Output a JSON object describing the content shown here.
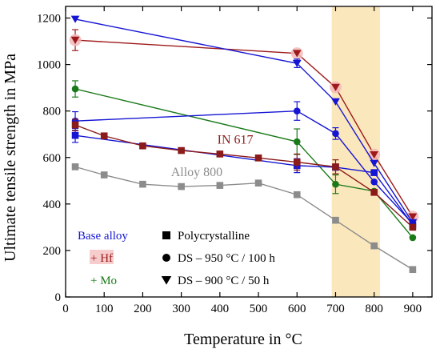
{
  "chart_data": {
    "type": "line",
    "xlabel": "Temperature in °C",
    "ylabel": "Ultimate tensile strength in MPa",
    "xlim": [
      0,
      950
    ],
    "ylim": [
      0,
      1250
    ],
    "xticks": [
      0,
      100,
      200,
      300,
      400,
      500,
      600,
      700,
      800,
      900
    ],
    "yticks": [
      0,
      200,
      400,
      600,
      800,
      1000,
      1200
    ],
    "xtick_labels": [
      "0",
      "100",
      "200",
      "300",
      "400",
      "500",
      "600",
      "700",
      "800",
      "900"
    ],
    "ytick_labels": [
      "0",
      "200",
      "400",
      "600",
      "800",
      "1000",
      "1200"
    ],
    "highlight_band": {
      "x": [
        690,
        815
      ],
      "color": "#fbe7bc"
    },
    "grid": false,
    "colors": {
      "base": "#1515d4",
      "hf": "#9e1a1a",
      "mo": "#1a7a1a",
      "in617": "#8b1a1a",
      "alloy800": "#8c8c8c"
    },
    "series": [
      {
        "color": "#9e1a1a",
        "marker": "triangle-down",
        "x": [
          25,
          600,
          700,
          800,
          900
        ],
        "y": [
          1105,
          1048,
          902,
          612,
          345
        ],
        "err": [
          45,
          0,
          0,
          0,
          0
        ],
        "highlight": true
      },
      {
        "color": "#1515d4",
        "marker": "triangle-down",
        "x": [
          25,
          600,
          700,
          800,
          900
        ],
        "y": [
          1195,
          1005,
          840,
          575,
          320
        ],
        "err": [
          0,
          18,
          0,
          0,
          0
        ]
      },
      {
        "color": "#1a7a1a",
        "marker": "circle",
        "x": [
          25,
          600,
          700,
          800,
          900
        ],
        "y": [
          895,
          668,
          485,
          455,
          255
        ],
        "err": [
          35,
          55,
          40,
          0,
          0
        ]
      },
      {
        "color": "#1515d4",
        "marker": "circle",
        "x": [
          25,
          600,
          700,
          800,
          900
        ],
        "y": [
          757,
          800,
          703,
          495,
          315
        ],
        "err": [
          40,
          40,
          25,
          0,
          0
        ]
      },
      {
        "color": "#1515d4",
        "marker": "square",
        "x": [
          25,
          600,
          700,
          800,
          900
        ],
        "y": [
          695,
          565,
          558,
          535,
          310
        ],
        "err": [
          30,
          30,
          0,
          0,
          0
        ]
      },
      {
        "color": "#8b1a1a",
        "marker": "square",
        "x": [
          25,
          100,
          200,
          300,
          400,
          500,
          600,
          700,
          800,
          900
        ],
        "y": [
          740,
          693,
          650,
          630,
          615,
          598,
          580,
          560,
          450,
          300
        ],
        "err": [
          25,
          0,
          0,
          0,
          0,
          0,
          35,
          30,
          0,
          0
        ]
      },
      {
        "color": "#8c8c8c",
        "marker": "square",
        "x": [
          25,
          100,
          200,
          300,
          400,
          500,
          600,
          700,
          800,
          900
        ],
        "y": [
          560,
          525,
          485,
          475,
          480,
          490,
          440,
          330,
          220,
          118
        ],
        "err": [
          0,
          0,
          0,
          0,
          0,
          0,
          0,
          0,
          0,
          0
        ]
      }
    ],
    "annotations": [
      {
        "text": "IN 617",
        "x": 440,
        "y": 660,
        "color": "#8b1a1a"
      },
      {
        "text": "Alloy 800",
        "x": 340,
        "y": 520,
        "color": "#8c8c8c"
      }
    ],
    "legend": {
      "placement": "bottom-left",
      "alloys": [
        {
          "label": "Base alloy",
          "color": "#1515d4"
        },
        {
          "label": "+ Hf",
          "color": "#9e1a1a",
          "highlight": true
        },
        {
          "label": "+ Mo",
          "color": "#1a7a1a"
        }
      ],
      "structures": [
        {
          "label": "Polycrystalline",
          "marker": "square"
        },
        {
          "label": "DS – 950 °C / 100 h",
          "marker": "circle"
        },
        {
          "label": "DS – 900 °C / 50 h",
          "marker": "triangle-down"
        }
      ]
    }
  }
}
